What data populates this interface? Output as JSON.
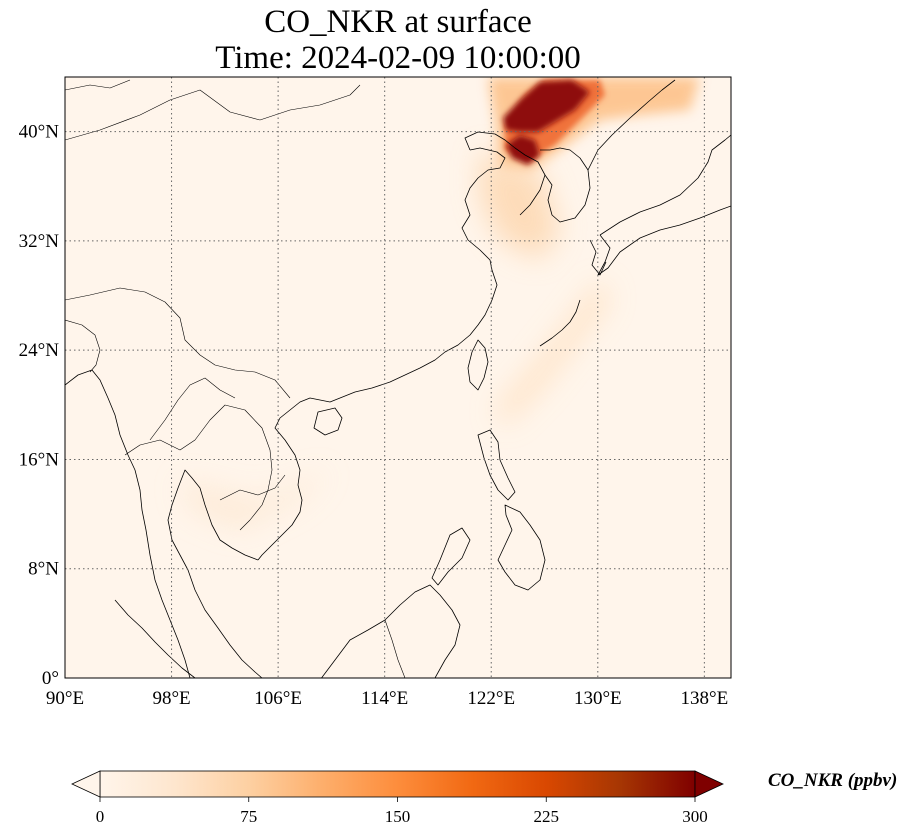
{
  "title": {
    "line1": "CO_NKR at surface",
    "line2": "Time: 2024-02-09 10:00:00"
  },
  "map": {
    "projection": "PlateCarree",
    "lon_range": [
      90,
      140
    ],
    "lat_range": [
      0,
      44
    ],
    "background_color": "#fff5eb",
    "gridlines": true,
    "gridline_style": "dotted",
    "lon_ticks": [
      {
        "value": 90,
        "label": "90°E"
      },
      {
        "value": 98,
        "label": "98°E"
      },
      {
        "value": 106,
        "label": "106°E"
      },
      {
        "value": 114,
        "label": "114°E"
      },
      {
        "value": 122,
        "label": "122°E"
      },
      {
        "value": 130,
        "label": "130°E"
      },
      {
        "value": 138,
        "label": "138°E"
      }
    ],
    "lat_ticks": [
      {
        "value": 0,
        "label": "0°"
      },
      {
        "value": 8,
        "label": "8°N"
      },
      {
        "value": 16,
        "label": "16°N"
      },
      {
        "value": 24,
        "label": "24°N"
      },
      {
        "value": 32,
        "label": "32°N"
      },
      {
        "value": 40,
        "label": "40°N"
      }
    ]
  },
  "colorbar": {
    "label": "CO_NKR (ppbv)",
    "colormap": "OrRd",
    "min": 0,
    "max": 300,
    "extend": "both",
    "ticks": [
      {
        "value": 0,
        "label": "0"
      },
      {
        "value": 75,
        "label": "75"
      },
      {
        "value": 150,
        "label": "150"
      },
      {
        "value": 225,
        "label": "225"
      },
      {
        "value": 300,
        "label": "300"
      }
    ],
    "stops": [
      "#fff5eb",
      "#fee6ce",
      "#fdd0a2",
      "#fdae6b",
      "#fd8d3c",
      "#f16913",
      "#d94801",
      "#a63603",
      "#7f0000"
    ]
  }
}
